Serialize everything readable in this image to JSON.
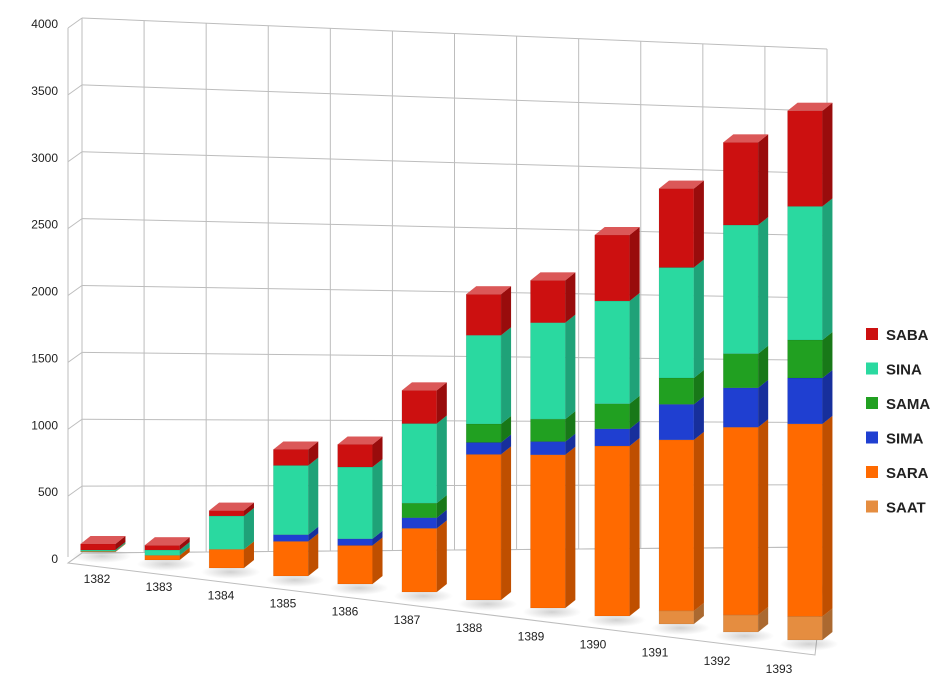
{
  "chart_data": {
    "type": "bar",
    "stacked": true,
    "three_d": true,
    "categories": [
      "1382",
      "1383",
      "1384",
      "1385",
      "1386",
      "1387",
      "1388",
      "1389",
      "1390",
      "1391",
      "1392",
      "1393"
    ],
    "series": [
      {
        "name": "SAAT",
        "color": "#e58d40",
        "values": [
          0,
          0,
          0,
          0,
          0,
          0,
          0,
          0,
          0,
          100,
          130,
          180
        ]
      },
      {
        "name": "SARA",
        "color": "#ff6a00",
        "values": [
          5,
          35,
          140,
          260,
          290,
          480,
          1100,
          1160,
          1290,
          1300,
          1430,
          1470
        ]
      },
      {
        "name": "SIMA",
        "color": "#1f3fd1",
        "values": [
          0,
          0,
          0,
          50,
          50,
          80,
          90,
          100,
          130,
          270,
          300,
          350
        ]
      },
      {
        "name": "SAMA",
        "color": "#21a021",
        "values": [
          0,
          0,
          0,
          0,
          0,
          110,
          140,
          170,
          190,
          200,
          260,
          290
        ]
      },
      {
        "name": "SINA",
        "color": "#2ad9a0",
        "values": [
          10,
          40,
          250,
          520,
          540,
          600,
          670,
          730,
          780,
          840,
          980,
          1020
        ]
      },
      {
        "name": "SABA",
        "color": "#cc1010",
        "values": [
          45,
          35,
          40,
          120,
          170,
          250,
          310,
          320,
          500,
          600,
          630,
          730
        ]
      }
    ],
    "ylim": [
      0,
      4000
    ],
    "yticks": [
      "0",
      "500",
      "1000",
      "1500",
      "2000",
      "2500",
      "3000",
      "3500",
      "4000"
    ],
    "grid": true,
    "legend_position": "right",
    "legend_order": [
      "SABA",
      "SINA",
      "SAMA",
      "SIMA",
      "SARA",
      "SAAT"
    ]
  }
}
